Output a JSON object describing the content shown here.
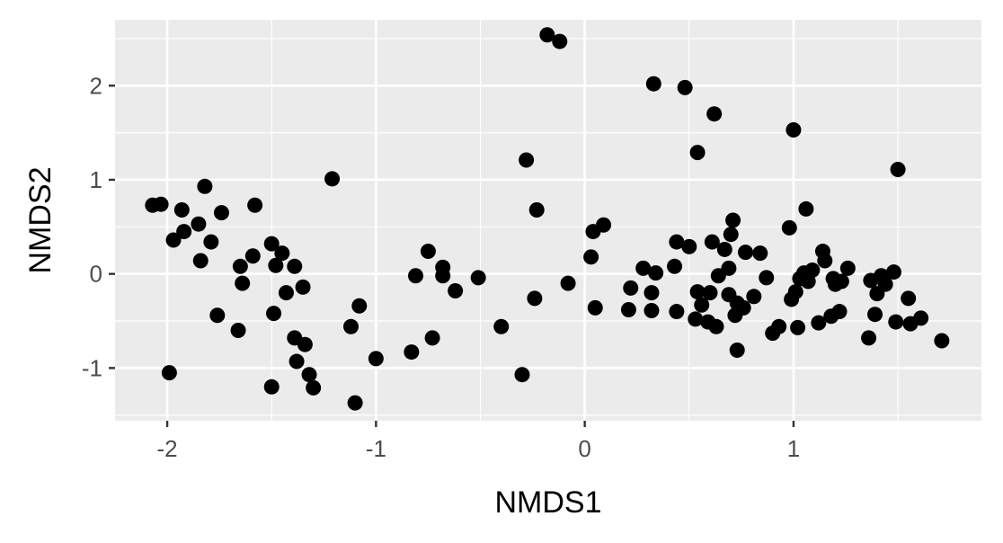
{
  "chart_data": {
    "type": "scatter",
    "xlabel": "NMDS1",
    "ylabel": "NMDS2",
    "xlim": [
      -2.25,
      1.9
    ],
    "ylim": [
      -1.56,
      2.7
    ],
    "x_ticks": [
      -2,
      -1,
      0,
      1
    ],
    "x_tick_labels": [
      "-2",
      "-1",
      "0",
      "1"
    ],
    "y_ticks": [
      -1,
      0,
      1,
      2
    ],
    "y_tick_labels": [
      "-1",
      "0",
      "1",
      "2"
    ],
    "grid": true,
    "legend": "none",
    "colors": {
      "panel": "#ebebeb",
      "grid": "#ffffff",
      "point": "#000000",
      "tick": "#4d4d4d"
    },
    "points": [
      [
        -2.07,
        0.73
      ],
      [
        -2.03,
        0.74
      ],
      [
        -1.99,
        -1.05
      ],
      [
        -1.97,
        0.36
      ],
      [
        -1.93,
        0.68
      ],
      [
        -1.92,
        0.45
      ],
      [
        -1.85,
        0.53
      ],
      [
        -1.84,
        0.14
      ],
      [
        -1.82,
        0.93
      ],
      [
        -1.79,
        0.34
      ],
      [
        -1.76,
        -0.44
      ],
      [
        -1.74,
        0.65
      ],
      [
        -1.66,
        -0.6
      ],
      [
        -1.65,
        0.08
      ],
      [
        -1.64,
        -0.1
      ],
      [
        -1.59,
        0.19
      ],
      [
        -1.58,
        0.73
      ],
      [
        -1.5,
        0.32
      ],
      [
        -1.5,
        -1.2
      ],
      [
        -1.49,
        -0.42
      ],
      [
        -1.48,
        0.09
      ],
      [
        -1.45,
        0.22
      ],
      [
        -1.43,
        -0.2
      ],
      [
        -1.39,
        0.08
      ],
      [
        -1.39,
        -0.68
      ],
      [
        -1.38,
        -0.93
      ],
      [
        -1.35,
        -0.14
      ],
      [
        -1.34,
        -0.75
      ],
      [
        -1.32,
        -1.07
      ],
      [
        -1.3,
        -1.21
      ],
      [
        -1.21,
        1.01
      ],
      [
        -1.12,
        -0.56
      ],
      [
        -1.1,
        -1.37
      ],
      [
        -1.08,
        -0.34
      ],
      [
        -1.0,
        -0.9
      ],
      [
        -0.83,
        -0.83
      ],
      [
        -0.81,
        -0.02
      ],
      [
        -0.75,
        0.24
      ],
      [
        -0.73,
        -0.68
      ],
      [
        -0.68,
        0.07
      ],
      [
        -0.68,
        -0.02
      ],
      [
        -0.62,
        -0.18
      ],
      [
        -0.51,
        -0.04
      ],
      [
        -0.4,
        -0.56
      ],
      [
        -0.3,
        -1.07
      ],
      [
        -0.28,
        1.21
      ],
      [
        -0.24,
        -0.26
      ],
      [
        -0.23,
        0.68
      ],
      [
        -0.18,
        2.54
      ],
      [
        -0.12,
        2.47
      ],
      [
        -0.08,
        -0.1
      ],
      [
        0.03,
        0.18
      ],
      [
        0.04,
        0.45
      ],
      [
        0.05,
        -0.36
      ],
      [
        0.09,
        0.52
      ],
      [
        0.21,
        -0.38
      ],
      [
        0.22,
        -0.15
      ],
      [
        0.28,
        0.06
      ],
      [
        0.32,
        -0.39
      ],
      [
        0.32,
        -0.2
      ],
      [
        0.33,
        2.02
      ],
      [
        0.34,
        0.01
      ],
      [
        0.43,
        0.08
      ],
      [
        0.44,
        -0.4
      ],
      [
        0.44,
        0.34
      ],
      [
        0.48,
        1.98
      ],
      [
        0.5,
        0.29
      ],
      [
        0.53,
        -0.48
      ],
      [
        0.54,
        1.29
      ],
      [
        0.54,
        -0.19
      ],
      [
        0.56,
        -0.33
      ],
      [
        0.59,
        -0.51
      ],
      [
        0.6,
        -0.2
      ],
      [
        0.61,
        0.34
      ],
      [
        0.62,
        1.7
      ],
      [
        0.63,
        -0.56
      ],
      [
        0.64,
        -0.02
      ],
      [
        0.67,
        0.26
      ],
      [
        0.69,
        -0.22
      ],
      [
        0.69,
        0.06
      ],
      [
        0.7,
        0.42
      ],
      [
        0.71,
        0.57
      ],
      [
        0.72,
        -0.44
      ],
      [
        0.73,
        -0.31
      ],
      [
        0.73,
        -0.81
      ],
      [
        0.76,
        -0.36
      ],
      [
        0.77,
        0.23
      ],
      [
        0.81,
        -0.24
      ],
      [
        0.84,
        0.22
      ],
      [
        0.87,
        -0.04
      ],
      [
        0.9,
        -0.63
      ],
      [
        0.93,
        -0.56
      ],
      [
        0.98,
        0.49
      ],
      [
        0.99,
        -0.27
      ],
      [
        1.0,
        1.53
      ],
      [
        1.01,
        -0.19
      ],
      [
        1.02,
        -0.57
      ],
      [
        1.03,
        -0.05
      ],
      [
        1.05,
        0.01
      ],
      [
        1.06,
        0.69
      ],
      [
        1.07,
        -0.08
      ],
      [
        1.09,
        0.04
      ],
      [
        1.12,
        -0.52
      ],
      [
        1.14,
        0.24
      ],
      [
        1.15,
        0.14
      ],
      [
        1.18,
        -0.45
      ],
      [
        1.19,
        -0.05
      ],
      [
        1.2,
        -0.11
      ],
      [
        1.22,
        -0.4
      ],
      [
        1.23,
        -0.08
      ],
      [
        1.26,
        0.06
      ],
      [
        1.36,
        -0.68
      ],
      [
        1.37,
        -0.07
      ],
      [
        1.39,
        -0.43
      ],
      [
        1.4,
        -0.21
      ],
      [
        1.42,
        -0.02
      ],
      [
        1.44,
        -0.11
      ],
      [
        1.48,
        0.02
      ],
      [
        1.49,
        -0.51
      ],
      [
        1.5,
        1.11
      ],
      [
        1.55,
        -0.26
      ],
      [
        1.56,
        -0.53
      ],
      [
        1.61,
        -0.47
      ],
      [
        1.71,
        -0.71
      ]
    ]
  }
}
